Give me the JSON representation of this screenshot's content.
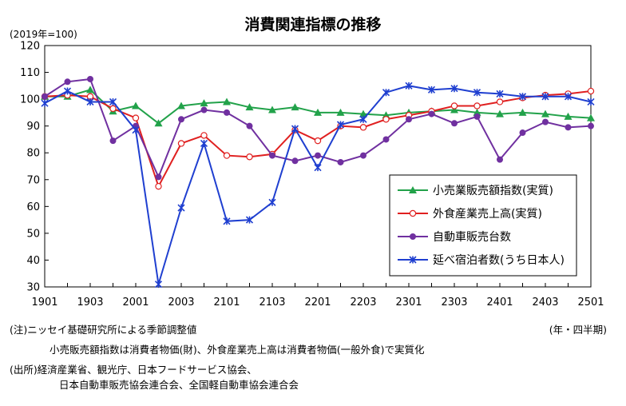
{
  "chart_data": {
    "type": "line",
    "title": "消費関連指標の推移",
    "unit_label": "(2019年=100)",
    "x_unit_label": "(年・四半期)",
    "x_tick_labels": [
      "1901",
      "1903",
      "2001",
      "2003",
      "2101",
      "2103",
      "2201",
      "2203",
      "2301",
      "2303",
      "2401",
      "2403",
      "2501"
    ],
    "x": [
      "1901",
      "1902",
      "1903",
      "1904",
      "2001",
      "2002",
      "2003",
      "2004",
      "2101",
      "2102",
      "2103",
      "2104",
      "2201",
      "2202",
      "2203",
      "2204",
      "2301",
      "2302",
      "2303",
      "2304",
      "2401",
      "2402",
      "2403",
      "2404",
      "2501"
    ],
    "ylim": [
      30,
      120
    ],
    "y_ticks": [
      30,
      40,
      50,
      60,
      70,
      80,
      90,
      100,
      110,
      120
    ],
    "grid": false,
    "legend_position": "lower-right",
    "series": [
      {
        "name": "小売業販売額指数(実質)",
        "color": "#22a24a",
        "marker": "triangle",
        "values": [
          101.0,
          101.0,
          103.5,
          95.5,
          97.5,
          91.0,
          97.5,
          98.5,
          99.0,
          97.0,
          96.0,
          97.0,
          95.0,
          95.0,
          94.5,
          94.0,
          95.0,
          95.5,
          96.0,
          95.0,
          94.5,
          95.0,
          94.5,
          93.5,
          93.0
        ]
      },
      {
        "name": "外食産業売上高(実質)",
        "color": "#e02020",
        "marker": "circle-open",
        "values": [
          101.0,
          101.5,
          101.0,
          96.5,
          93.0,
          67.5,
          83.5,
          86.5,
          79.0,
          78.5,
          79.5,
          88.5,
          84.5,
          90.0,
          89.5,
          92.5,
          94.0,
          95.5,
          97.5,
          97.5,
          99.0,
          100.5,
          101.5,
          102.0,
          103.0
        ]
      },
      {
        "name": "自動車販売台数",
        "color": "#7030a0",
        "marker": "circle",
        "values": [
          101.0,
          106.5,
          107.5,
          84.5,
          90.0,
          71.0,
          92.5,
          96.0,
          95.0,
          90.0,
          79.0,
          77.0,
          79.0,
          76.5,
          79.0,
          85.0,
          92.5,
          94.5,
          91.0,
          93.5,
          77.5,
          87.5,
          91.5,
          89.5,
          90.0
        ]
      },
      {
        "name": "延べ宿泊者数(うち日本人)",
        "color": "#1f3fd0",
        "marker": "x",
        "values": [
          98.5,
          103.0,
          99.0,
          99.0,
          88.5,
          31.0,
          59.5,
          83.5,
          54.5,
          55.0,
          61.5,
          89.0,
          74.5,
          90.5,
          92.5,
          102.5,
          105.0,
          103.5,
          104.0,
          102.5,
          102.0,
          101.0,
          101.0,
          101.0,
          99.0
        ]
      }
    ]
  },
  "notes": {
    "note1": "(注)ニッセイ基礎研究所による季節調整値",
    "note2": "小売販売額指数は消費者物価(財)、外食産業売上高は消費者物価(一般外食)で実質化",
    "source1": "(出所)経済産業省、観光庁、日本フードサービス協会、",
    "source2": "日本自動車販売協会連合会、全国軽自動車協会連合会"
  }
}
